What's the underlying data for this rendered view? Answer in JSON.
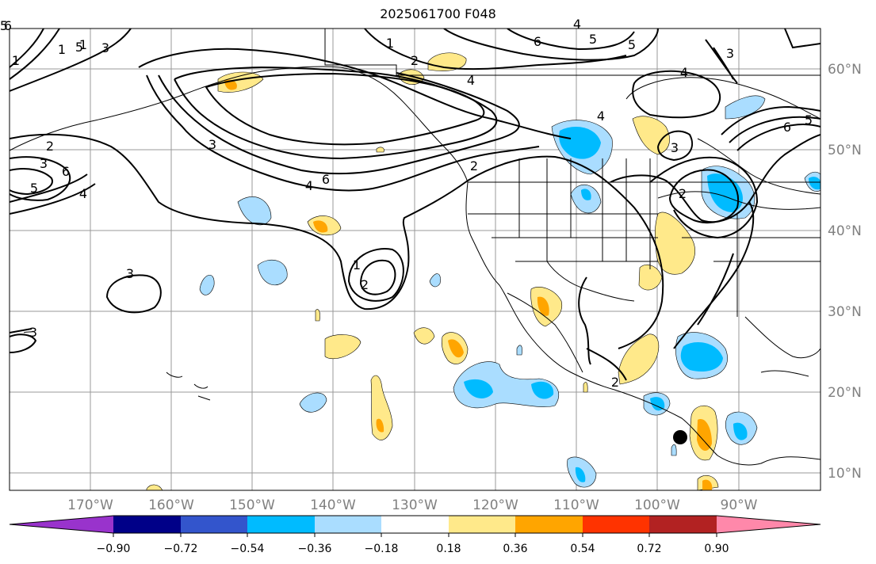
{
  "title": "2025061700 F048",
  "lon_labels": [
    "170°W",
    "160°W",
    "150°W",
    "140°W",
    "130°W",
    "120°W",
    "110°W",
    "100°W",
    "90°W"
  ],
  "lat_labels": [
    "60°N",
    "50°N",
    "40°N",
    "30°N",
    "20°N",
    "10°N"
  ],
  "colorbar": {
    "tick_labels": [
      "−0.90",
      "−0.72",
      "−0.54",
      "−0.36",
      "−0.18",
      "0.18",
      "0.36",
      "0.54",
      "0.72",
      "0.90"
    ],
    "colors": [
      "#9933cc",
      "#000088",
      "#3355cc",
      "#00bbff",
      "#aaddff",
      "#ffffff",
      "#ffe98a",
      "#ffa500",
      "#ff3300",
      "#b22222",
      "#ff88aa"
    ]
  },
  "contour_labels": [
    "1",
    "2",
    "4",
    "5",
    "3",
    "6",
    "1",
    "2",
    "3",
    "4",
    "6",
    "5",
    "3",
    "2",
    "4",
    "5",
    "6",
    "3",
    "4",
    "5",
    "3",
    "6",
    "2",
    "5",
    "4",
    "3",
    "1",
    "2",
    "3",
    "1",
    "1",
    "4",
    "2",
    "6",
    "5"
  ],
  "marker": "filled-circle"
}
